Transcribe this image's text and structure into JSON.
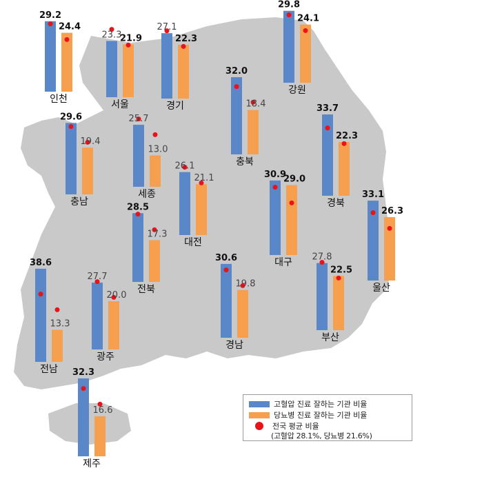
{
  "chart_data": {
    "type": "bar",
    "categories": [
      "인천",
      "서울",
      "경기",
      "강원",
      "충남",
      "세종",
      "충북",
      "대전",
      "경북",
      "대구",
      "울산",
      "전북",
      "광주",
      "전남",
      "경남",
      "부산",
      "제주"
    ],
    "series": [
      {
        "name": "고혈압 진료 잘하는 기관 비율",
        "color": "#5a87c7",
        "values": [
          29.2,
          23.3,
          27.1,
          29.8,
          29.6,
          25.7,
          32.0,
          26.1,
          33.7,
          30.9,
          33.1,
          28.5,
          27.7,
          38.6,
          30.6,
          27.8,
          32.3
        ],
        "labels": [
          "29.2",
          "23.3",
          "27.1",
          "29.8",
          "29.6",
          "25.7",
          "32.0",
          "26.1",
          "33.7",
          "30.9",
          "33.1",
          "28.5",
          "27.7",
          "38.6",
          "30.6",
          "27.8",
          "32.3"
        ]
      },
      {
        "name": "당뇨병 진료 잘하는 기관 비율",
        "color": "#f6a04f",
        "values": [
          24.4,
          21.9,
          22.3,
          24.1,
          19.4,
          13.0,
          18.4,
          21.1,
          22.3,
          29.0,
          26.3,
          17.3,
          20.0,
          13.3,
          19.8,
          22.5,
          16.6
        ],
        "labels": [
          "24.4",
          "21.9",
          "22.3",
          "24.1",
          "19.4",
          "13.0",
          "18.4",
          "21.1",
          "22.3",
          "29.0",
          "26.3",
          "17.3",
          "20.0",
          "13.3",
          "19.8",
          "22.5",
          "16.6"
        ]
      }
    ],
    "bold_values": [
      [
        true,
        false,
        false,
        true,
        true,
        false,
        true,
        false,
        true,
        true,
        true,
        true,
        false,
        true,
        true,
        false,
        true
      ],
      [
        true,
        true,
        true,
        true,
        false,
        false,
        false,
        false,
        true,
        true,
        true,
        false,
        false,
        false,
        false,
        true,
        false
      ]
    ],
    "reference": {
      "name": "전국 평균 비율",
      "note": "(고혈압 28.1%, 당뇨병 21.6%)",
      "hypertension": 28.1,
      "diabetes": 21.6,
      "color": "#e8141a"
    },
    "legend": {
      "hypertension_label": "고혈압 진료 잘하는 기관 비율",
      "diabetes_label": "당뇨병 진료 잘하는 기관 비율",
      "average_label": "전국 평균 비율",
      "average_note": "(고혈압 28.1%, 당뇨병 21.6%)"
    },
    "colors": {
      "map_fill": "#c9c9c9",
      "background": "#ffffff"
    }
  }
}
